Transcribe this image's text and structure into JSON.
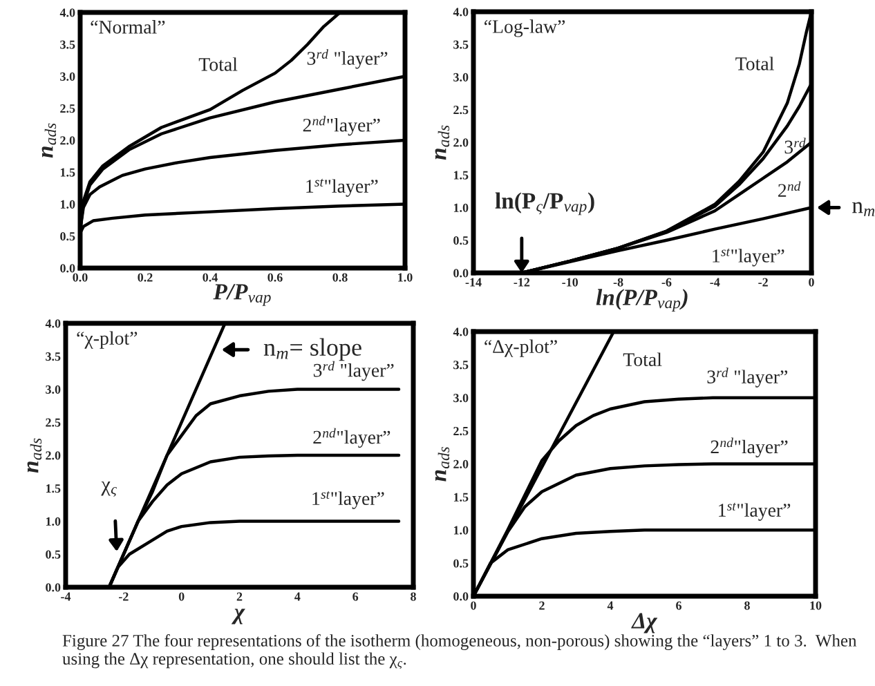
{
  "chart_data": [
    {
      "type": "line",
      "title": "“Normal”",
      "xlabel": "P/P$_{vap}$",
      "ylabel": "n$_{ads}$",
      "xlim": [
        0,
        1
      ],
      "xticks": [
        {
          "value": 0,
          "label": "0.0"
        },
        {
          "value": 0.2,
          "label": "0.2"
        },
        {
          "value": 0.4,
          "label": "0.4"
        },
        {
          "value": 0.6,
          "label": "0.6"
        },
        {
          "value": 0.8,
          "label": "0.8"
        },
        {
          "value": 1,
          "label": "1.0"
        }
      ],
      "ylim": [
        0,
        4
      ],
      "yticks": [
        {
          "value": 0,
          "label": "0.0"
        },
        {
          "value": 0.5,
          "label": "0.5"
        },
        {
          "value": 1,
          "label": "1.0"
        },
        {
          "value": 1.5,
          "label": "1.5"
        },
        {
          "value": 2,
          "label": "2.0"
        },
        {
          "value": 2.5,
          "label": "2.5"
        },
        {
          "value": 3,
          "label": "3.0"
        },
        {
          "value": 3.5,
          "label": "3.5"
        },
        {
          "value": 4,
          "label": "4.0"
        }
      ],
      "series": [
        {
          "name": "Total",
          "color": "#000000",
          "x": [
            0,
            0.01,
            0.03,
            0.07,
            0.15,
            0.25,
            0.4,
            0.5,
            0.6,
            0.65,
            0.7,
            0.75,
            0.8
          ],
          "values": [
            0.6,
            1.05,
            1.35,
            1.6,
            1.9,
            2.2,
            2.48,
            2.78,
            3.05,
            3.25,
            3.5,
            3.78,
            4.0
          ]
        },
        {
          "name": "3$^{rd}$ \"layer”",
          "color": "#000000",
          "x": [
            0,
            0.01,
            0.03,
            0.07,
            0.15,
            0.25,
            0.4,
            0.6,
            0.8,
            1.0
          ],
          "values": [
            0.6,
            1.0,
            1.3,
            1.55,
            1.85,
            2.1,
            2.35,
            2.6,
            2.8,
            3.0
          ]
        },
        {
          "name": "2$^{nd}$\"layer”",
          "color": "#000000",
          "x": [
            0,
            0.01,
            0.03,
            0.06,
            0.13,
            0.2,
            0.3,
            0.4,
            0.6,
            0.8,
            1.0
          ],
          "values": [
            0.6,
            0.95,
            1.15,
            1.27,
            1.45,
            1.55,
            1.65,
            1.73,
            1.84,
            1.93,
            2.0
          ]
        },
        {
          "name": "1$^{st}$\"layer”",
          "color": "#000000",
          "x": [
            0,
            0.01,
            0.04,
            0.1,
            0.2,
            0.4,
            0.6,
            0.8,
            1.0
          ],
          "values": [
            0.55,
            0.65,
            0.74,
            0.78,
            0.83,
            0.88,
            0.93,
            0.97,
            1.0
          ]
        }
      ]
    },
    {
      "type": "line",
      "title": "“Log-law”",
      "xlabel": "ln(P/P$_{vap}$)",
      "ylabel": "n$_{ads}$",
      "xlim": [
        -14,
        0
      ],
      "xticks": [
        -14,
        -12,
        -10,
        -8,
        -6,
        -4,
        -2,
        0
      ],
      "ylim": [
        0,
        4
      ],
      "yticks": [
        {
          "value": 0,
          "label": "0.0"
        },
        {
          "value": 0.5,
          "label": "0.5"
        },
        {
          "value": 1,
          "label": "1.0"
        },
        {
          "value": 1.5,
          "label": "1.5"
        },
        {
          "value": 2,
          "label": "2.0"
        },
        {
          "value": 2.5,
          "label": "2.5"
        },
        {
          "value": 3,
          "label": "3.0"
        },
        {
          "value": 3.5,
          "label": "3.5"
        },
        {
          "value": 4,
          "label": "4.0"
        }
      ],
      "series": [
        {
          "name": "Total",
          "color": "#000000",
          "x": [
            -12,
            -10,
            -8,
            -6,
            -4,
            -3,
            -2,
            -1,
            -0.5,
            -0.2,
            0
          ],
          "values": [
            0,
            0.18,
            0.38,
            0.64,
            1.05,
            1.4,
            1.85,
            2.6,
            3.2,
            3.7,
            4.0
          ]
        },
        {
          "name": "3$^{rd}$",
          "color": "#000000",
          "x": [
            -12,
            -10,
            -8,
            -6,
            -4,
            -3,
            -2,
            -1,
            -0.5,
            0
          ],
          "values": [
            0,
            0.18,
            0.38,
            0.64,
            1.02,
            1.35,
            1.75,
            2.25,
            2.55,
            2.9
          ]
        },
        {
          "name": "2$^{nd}$",
          "color": "#000000",
          "x": [
            -12,
            -10,
            -8,
            -6,
            -4,
            -3,
            -2,
            -1,
            0
          ],
          "values": [
            0,
            0.18,
            0.38,
            0.62,
            0.95,
            1.2,
            1.45,
            1.7,
            2.0
          ]
        },
        {
          "name": "1$^{st}$\"layer”",
          "color": "#000000",
          "x": [
            -12,
            -10,
            -8,
            -6,
            -4,
            -2,
            0
          ],
          "values": [
            0,
            0.17,
            0.34,
            0.5,
            0.67,
            0.83,
            1.0
          ]
        }
      ],
      "annotations": [
        {
          "text": "ln(P$_{ς}$/P$_{vap}$)",
          "x": -12,
          "y": 0
        },
        {
          "text": "n$_{m}$",
          "x": 0,
          "y": 1.0
        }
      ]
    },
    {
      "type": "line",
      "title": "“χ-plot”",
      "xlabel": "χ",
      "ylabel": "n$_{ads}$",
      "xlim": [
        -4,
        8
      ],
      "xticks": [
        -4,
        -2,
        0,
        2,
        4,
        6,
        8
      ],
      "ylim": [
        0,
        4
      ],
      "yticks": [
        {
          "value": 0,
          "label": "0.0"
        },
        {
          "value": 0.5,
          "label": "0.5"
        },
        {
          "value": 1,
          "label": "1.0"
        },
        {
          "value": 1.5,
          "label": "1.5"
        },
        {
          "value": 2,
          "label": "2.0"
        },
        {
          "value": 2.5,
          "label": "2.5"
        },
        {
          "value": 3,
          "label": "3.0"
        },
        {
          "value": 3.5,
          "label": "3.5"
        },
        {
          "value": 4,
          "label": "4.0"
        }
      ],
      "series": [
        {
          "color": "#000000",
          "x": [
            -2.5,
            1.5
          ],
          "values": [
            0,
            4.0
          ]
        },
        {
          "name": "3$^{rd}$ \"layer”",
          "color": "#000000",
          "x": [
            -2.5,
            -1.5,
            -1,
            -0.5,
            0,
            0.5,
            1,
            2,
            3,
            4,
            7.5
          ],
          "values": [
            0,
            1.0,
            1.45,
            2.0,
            2.3,
            2.6,
            2.78,
            2.9,
            2.97,
            3.0,
            3.0
          ]
        },
        {
          "name": "2$^{nd}$\"layer”",
          "color": "#000000",
          "x": [
            -2.5,
            -1.5,
            -1,
            -0.5,
            0,
            1,
            2,
            3,
            4,
            7.5
          ],
          "values": [
            0,
            1.0,
            1.3,
            1.55,
            1.72,
            1.9,
            1.97,
            1.99,
            2.0,
            2.0
          ]
        },
        {
          "name": "1$^{st}$\"layer”",
          "color": "#000000",
          "x": [
            -2.5,
            -2.2,
            -1.8,
            -1.2,
            -0.5,
            0,
            1,
            2,
            7.5
          ],
          "values": [
            0,
            0.3,
            0.5,
            0.66,
            0.85,
            0.92,
            0.98,
            1.0,
            1.0
          ]
        }
      ],
      "annotations": [
        {
          "text": "n$_{m}$= slope",
          "x": 1.1,
          "y": 3.6
        },
        {
          "text": "χ$_{ς}$",
          "x": -2.0,
          "y": 0.5
        }
      ]
    },
    {
      "type": "line",
      "title": "“Δχ-plot”",
      "xlabel": "Δχ",
      "ylabel": "n$_{ads}$",
      "xlim": [
        0,
        10
      ],
      "xticks": [
        0,
        2,
        4,
        6,
        8,
        10
      ],
      "ylim": [
        0,
        4
      ],
      "yticks": [
        {
          "value": 0,
          "label": "0.0"
        },
        {
          "value": 0.5,
          "label": "0.5"
        },
        {
          "value": 1,
          "label": "1.0"
        },
        {
          "value": 1.5,
          "label": "1.5"
        },
        {
          "value": 2,
          "label": "2.0"
        },
        {
          "value": 2.5,
          "label": "2.5"
        },
        {
          "value": 3,
          "label": "3.0"
        },
        {
          "value": 3.5,
          "label": "3.5"
        },
        {
          "value": 4,
          "label": "4.0"
        }
      ],
      "series": [
        {
          "name": "Total",
          "color": "#000000",
          "x": [
            0,
            4.1
          ],
          "values": [
            0,
            4.0
          ]
        },
        {
          "name": "3$^{rd}$ \"layer”",
          "color": "#000000",
          "x": [
            0,
            1,
            2,
            2.5,
            3,
            3.5,
            4,
            5,
            6,
            7,
            10
          ],
          "values": [
            0,
            1.0,
            2.05,
            2.35,
            2.58,
            2.73,
            2.83,
            2.94,
            2.98,
            3.0,
            3.0
          ]
        },
        {
          "name": "2$^{nd}$\"layer”",
          "color": "#000000",
          "x": [
            0,
            1,
            1.5,
            2,
            3,
            4,
            5,
            6,
            7,
            10
          ],
          "values": [
            0,
            0.97,
            1.35,
            1.58,
            1.83,
            1.93,
            1.97,
            1.99,
            2.0,
            2.0
          ]
        },
        {
          "name": "1$^{st}$\"layer”",
          "color": "#000000",
          "x": [
            0,
            0.5,
            1,
            2,
            3,
            4,
            5,
            10
          ],
          "values": [
            0,
            0.5,
            0.7,
            0.87,
            0.95,
            0.98,
            1.0,
            1.0
          ]
        }
      ],
      "annotations": [
        "Figure 27 The four representations of the isotherm (homogeneous, non-porous) showing the “layers” 1 to 3.  When using the Δχ representation, one should list the χ$_{ς}$."
      ]
    }
  ]
}
